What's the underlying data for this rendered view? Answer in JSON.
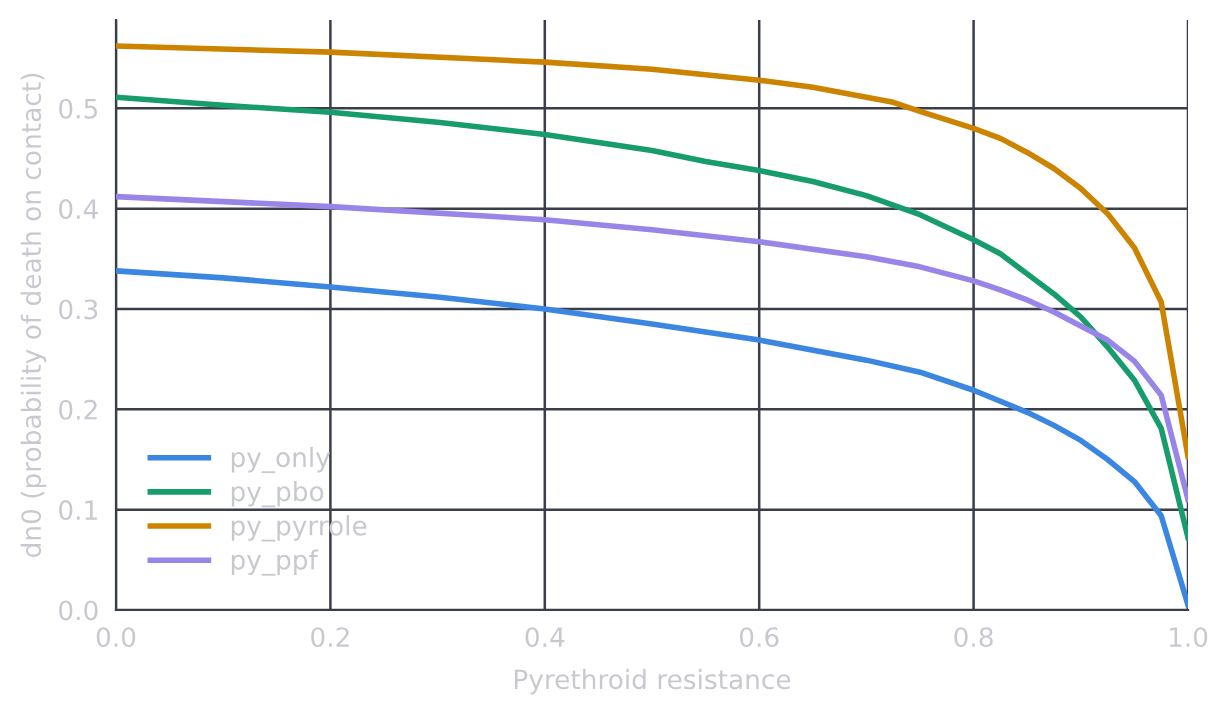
{
  "chart_data": {
    "type": "line",
    "xlabel": "Pyrethroid resistance",
    "ylabel": "dn0 (probability of death on contact)",
    "xlim": [
      0,
      1
    ],
    "ylim": [
      0,
      0.588
    ],
    "xticks": [
      {
        "value": 0,
        "label": "0.0"
      },
      0.2,
      0.4,
      0.6,
      0.8,
      {
        "value": 1,
        "label": "1.0"
      }
    ],
    "yticks": [
      {
        "value": 0,
        "label": "0.0"
      },
      0.1,
      0.2,
      0.3,
      0.4,
      0.5
    ],
    "grid": true,
    "legend": "bottom left",
    "line_style": "solid",
    "marker": "none",
    "series": [
      {
        "name": "py_only",
        "color": "#3b86e0",
        "x": [
          0,
          0.1,
          0.2,
          0.3,
          0.4,
          0.5,
          0.6,
          0.7,
          0.75,
          0.8,
          0.85,
          0.875,
          0.9,
          0.925,
          0.95,
          0.975,
          1.0
        ],
        "values": [
          0.338,
          0.331,
          0.322,
          0.312,
          0.3,
          0.285,
          0.269,
          0.249,
          0.237,
          0.219,
          0.197,
          0.184,
          0.169,
          0.15,
          0.128,
          0.094,
          0.005
        ]
      },
      {
        "name": "py_pbo",
        "color": "#179c6c",
        "x": [
          0,
          0.1,
          0.2,
          0.3,
          0.4,
          0.5,
          0.55,
          0.6,
          0.65,
          0.7,
          0.75,
          0.8,
          0.825,
          0.85,
          0.875,
          0.9,
          0.925,
          0.95,
          0.975,
          1.0
        ],
        "values": [
          0.511,
          0.503,
          0.496,
          0.486,
          0.474,
          0.458,
          0.447,
          0.438,
          0.427,
          0.413,
          0.394,
          0.369,
          0.355,
          0.335,
          0.315,
          0.292,
          0.262,
          0.229,
          0.181,
          0.072
        ]
      },
      {
        "name": "py_pyrrole",
        "color": "#cc8400",
        "x": [
          0,
          0.2,
          0.4,
          0.5,
          0.6,
          0.65,
          0.7,
          0.725,
          0.75,
          0.8,
          0.825,
          0.85,
          0.875,
          0.9,
          0.925,
          0.95,
          0.975,
          1.0
        ],
        "values": [
          0.562,
          0.556,
          0.546,
          0.539,
          0.528,
          0.521,
          0.511,
          0.506,
          0.497,
          0.48,
          0.47,
          0.456,
          0.44,
          0.42,
          0.395,
          0.361,
          0.307,
          0.153
        ]
      },
      {
        "name": "py_ppf",
        "color": "#9985e8",
        "x": [
          0,
          0.2,
          0.4,
          0.5,
          0.6,
          0.7,
          0.75,
          0.8,
          0.825,
          0.85,
          0.875,
          0.9,
          0.925,
          0.95,
          0.975,
          1.0
        ],
        "values": [
          0.412,
          0.402,
          0.389,
          0.379,
          0.367,
          0.352,
          0.342,
          0.328,
          0.319,
          0.309,
          0.297,
          0.283,
          0.269,
          0.248,
          0.214,
          0.11
        ]
      }
    ]
  }
}
